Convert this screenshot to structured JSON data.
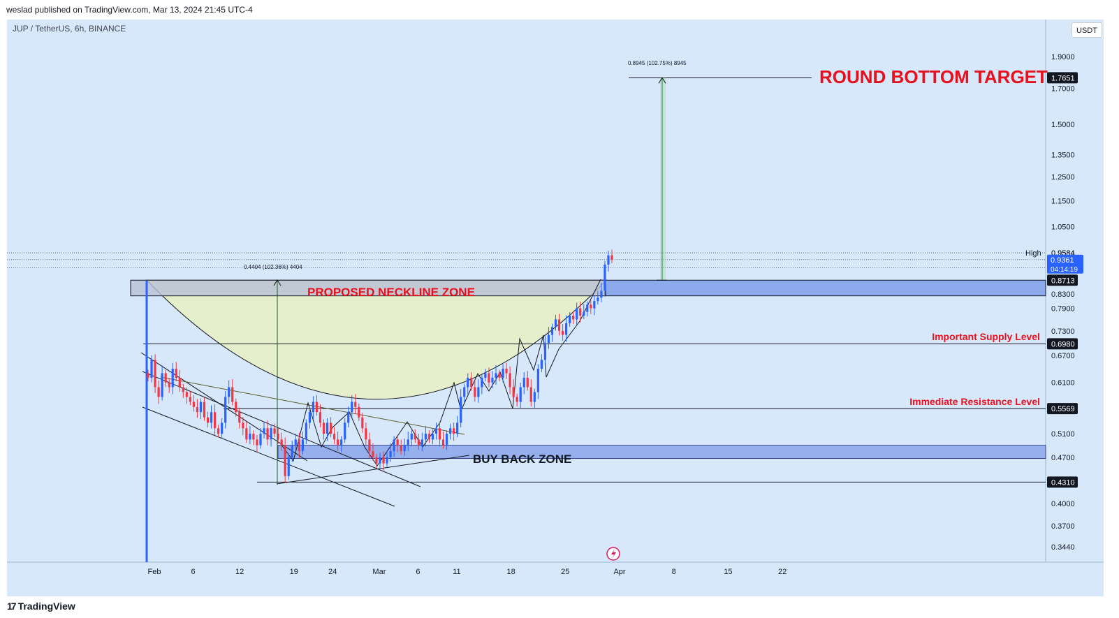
{
  "header": {
    "published_by": "weslad published on TradingView.com, Mar 13, 2024 21:45 UTC-4",
    "symbol_line": "JUP / TetherUS, 6h, BINANCE",
    "currency_button": "USDT"
  },
  "footer": {
    "brand": "TradingView",
    "logo_mark": "17"
  },
  "colors": {
    "background": "#d7e8fb",
    "bullish": "#2962ff",
    "bearish": "#f23645",
    "annotation_red": "#e8101c",
    "bowl_fill": "#e9f0c3",
    "zone_fill": "#7f9ee8",
    "target_arrow": "#2e7d32"
  },
  "chart_data": {
    "type": "candlestick",
    "title": "JUP / TetherUS, 6h, BINANCE",
    "y_scale": "log",
    "ylim": [
      0.33,
      2.0
    ],
    "y_ticks": [
      "1.9000",
      "1.7000",
      "1.5000",
      "1.3500",
      "1.2500",
      "1.1500",
      "1.0500",
      "0.9584",
      "0.8300",
      "0.7900",
      "0.7300",
      "0.6700",
      "0.6100",
      "0.5100",
      "0.4700",
      "0.4000",
      "0.3700",
      "0.3440"
    ],
    "x_ticks": [
      {
        "label": "Feb",
        "day": 1
      },
      {
        "label": "6",
        "day": 6
      },
      {
        "label": "12",
        "day": 12
      },
      {
        "label": "19",
        "day": 19
      },
      {
        "label": "24",
        "day": 24
      },
      {
        "label": "Mar",
        "day": 30
      },
      {
        "label": "6",
        "day": 35
      },
      {
        "label": "11",
        "day": 40
      },
      {
        "label": "18",
        "day": 47
      },
      {
        "label": "25",
        "day": 54
      },
      {
        "label": "Apr",
        "day": 61
      },
      {
        "label": "8",
        "day": 68
      },
      {
        "label": "15",
        "day": 75
      },
      {
        "label": "22",
        "day": 82
      }
    ],
    "price_labels": [
      {
        "label": "1.7651",
        "value": 1.7651,
        "style": "dark"
      },
      {
        "label": "0.9584",
        "value": 0.9584,
        "style": "plain",
        "prefix": "High"
      },
      {
        "label": "0.9361",
        "value": 0.9361,
        "style": "blue",
        "sub": "04:14:19"
      },
      {
        "label": "0.8713",
        "value": 0.8713,
        "style": "dark"
      },
      {
        "label": "0.6980",
        "value": 0.698,
        "style": "dark"
      },
      {
        "label": "0.5569",
        "value": 0.5569,
        "style": "dark"
      },
      {
        "label": "0.4310",
        "value": 0.431,
        "style": "dark"
      }
    ],
    "annotations": {
      "target": "ROUND BOTTOM TARGET",
      "neckline": "PROPOSED NECKLINE ZONE",
      "supply": "Important Supply Level",
      "resistance": "Immediate Resistance Level",
      "buyback": "BUY BACK ZONE",
      "measure_1": "0.4404 (102.36%) 4404",
      "measure_2": "0.8945 (102.75%) 8945"
    },
    "levels": {
      "target": 1.7651,
      "neckline_top": 0.8713,
      "neckline_bottom": 0.825,
      "supply": 0.698,
      "resistance": 0.5569,
      "buyback_top": 0.49,
      "buyback_bottom": 0.468,
      "low": 0.431
    },
    "closes": [
      0.62,
      0.66,
      0.6,
      0.58,
      0.63,
      0.61,
      0.6,
      0.64,
      0.62,
      0.6,
      0.59,
      0.58,
      0.57,
      0.56,
      0.55,
      0.57,
      0.54,
      0.53,
      0.55,
      0.52,
      0.51,
      0.53,
      0.58,
      0.6,
      0.57,
      0.55,
      0.53,
      0.52,
      0.5,
      0.51,
      0.5,
      0.49,
      0.51,
      0.52,
      0.5,
      0.52,
      0.51,
      0.5,
      0.49,
      0.44,
      0.47,
      0.49,
      0.5,
      0.48,
      0.5,
      0.53,
      0.55,
      0.57,
      0.55,
      0.53,
      0.51,
      0.53,
      0.51,
      0.5,
      0.49,
      0.5,
      0.53,
      0.55,
      0.57,
      0.56,
      0.54,
      0.52,
      0.5,
      0.48,
      0.47,
      0.46,
      0.47,
      0.46,
      0.47,
      0.48,
      0.5,
      0.49,
      0.48,
      0.49,
      0.5,
      0.51,
      0.5,
      0.49,
      0.5,
      0.51,
      0.5,
      0.51,
      0.52,
      0.5,
      0.49,
      0.51,
      0.52,
      0.51,
      0.53,
      0.58,
      0.6,
      0.62,
      0.6,
      0.58,
      0.6,
      0.62,
      0.63,
      0.61,
      0.62,
      0.63,
      0.62,
      0.64,
      0.63,
      0.6,
      0.58,
      0.57,
      0.6,
      0.62,
      0.6,
      0.57,
      0.59,
      0.64,
      0.66,
      0.7,
      0.72,
      0.74,
      0.76,
      0.73,
      0.72,
      0.75,
      0.77,
      0.76,
      0.79,
      0.77,
      0.78,
      0.8,
      0.79,
      0.81,
      0.82,
      0.84,
      0.92,
      0.95,
      0.9361
    ]
  }
}
